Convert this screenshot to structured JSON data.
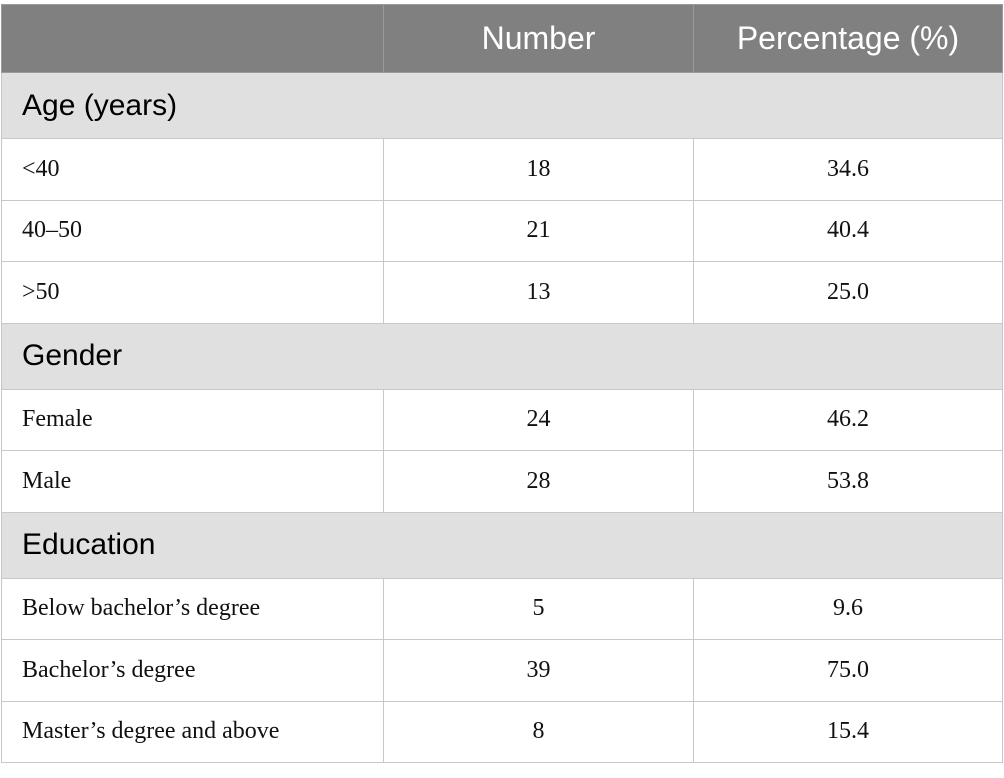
{
  "table": {
    "header": [
      "Number",
      "Percentage (%)"
    ],
    "sections": [
      {
        "title": "Age (years)",
        "rows": [
          [
            "<40",
            "18",
            "34.6"
          ],
          [
            "40–50",
            "21",
            "40.4"
          ],
          [
            ">50",
            "13",
            "25.0"
          ]
        ]
      },
      {
        "title": "Gender",
        "rows": [
          [
            "Female",
            "24",
            "46.2"
          ],
          [
            "Male",
            "28",
            "53.8"
          ]
        ]
      },
      {
        "title": "Education",
        "rows": [
          [
            "Below bachelor’s degree",
            "5",
            "9.6"
          ],
          [
            "Bachelor’s degree",
            "39",
            "75.0"
          ],
          [
            "Master’s degree and above",
            "8",
            "15.4"
          ]
        ]
      }
    ]
  }
}
